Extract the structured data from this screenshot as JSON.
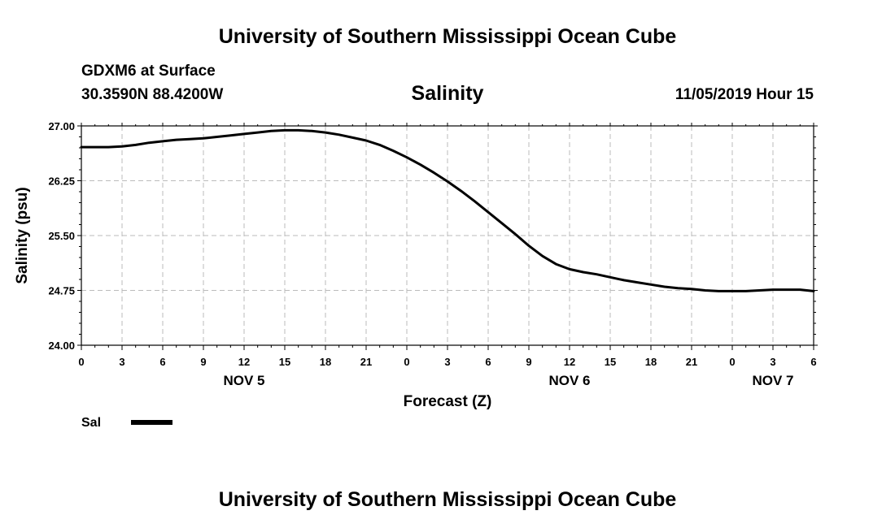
{
  "page": {
    "title_top": "University of Southern Mississippi Ocean Cube",
    "title_bottom": "University of Southern Mississippi Ocean Cube",
    "station": "GDXM6 at Surface",
    "location": "30.3590N 88.4200W",
    "chart_title": "Salinity",
    "timestamp": "11/05/2019 Hour 15"
  },
  "chart_data": {
    "type": "line",
    "title": "Salinity",
    "xlabel": "Forecast (Z)",
    "ylabel": "Salinity (psu)",
    "ylim": [
      24.0,
      27.0
    ],
    "xlim": [
      0,
      54
    ],
    "grid": true,
    "y_ticks": [
      "27.00",
      "26.25",
      "25.50",
      "24.75",
      "24.00"
    ],
    "x_ticks": [
      {
        "hour": 0,
        "label": "0"
      },
      {
        "hour": 3,
        "label": "3"
      },
      {
        "hour": 6,
        "label": "6"
      },
      {
        "hour": 9,
        "label": "9"
      },
      {
        "hour": 12,
        "label": "12"
      },
      {
        "hour": 15,
        "label": "15"
      },
      {
        "hour": 18,
        "label": "18"
      },
      {
        "hour": 21,
        "label": "21"
      },
      {
        "hour": 24,
        "label": "0"
      },
      {
        "hour": 27,
        "label": "3"
      },
      {
        "hour": 30,
        "label": "6"
      },
      {
        "hour": 33,
        "label": "9"
      },
      {
        "hour": 36,
        "label": "12"
      },
      {
        "hour": 39,
        "label": "15"
      },
      {
        "hour": 42,
        "label": "18"
      },
      {
        "hour": 45,
        "label": "21"
      },
      {
        "hour": 48,
        "label": "0"
      },
      {
        "hour": 51,
        "label": "3"
      },
      {
        "hour": 54,
        "label": "6"
      }
    ],
    "day_labels": [
      {
        "hour": 12,
        "label": "NOV 5"
      },
      {
        "hour": 36,
        "label": "NOV 6"
      },
      {
        "hour": 51,
        "label": "NOV 7"
      }
    ],
    "legend": "Sal",
    "legend_position": "bottom-left",
    "series": [
      {
        "name": "Sal",
        "x": [
          0,
          1,
          2,
          3,
          4,
          5,
          6,
          7,
          8,
          9,
          10,
          11,
          12,
          13,
          14,
          15,
          16,
          17,
          18,
          19,
          20,
          21,
          22,
          23,
          24,
          25,
          26,
          27,
          28,
          29,
          30,
          31,
          32,
          33,
          34,
          35,
          36,
          37,
          38,
          39,
          40,
          41,
          42,
          43,
          44,
          45,
          46,
          47,
          48,
          49,
          50,
          51,
          52,
          53,
          54
        ],
        "values": [
          26.71,
          26.71,
          26.71,
          26.72,
          26.74,
          26.77,
          26.79,
          26.81,
          26.82,
          26.83,
          26.85,
          26.87,
          26.89,
          26.91,
          26.93,
          26.94,
          26.94,
          26.93,
          26.91,
          26.88,
          26.84,
          26.8,
          26.74,
          26.66,
          26.57,
          26.47,
          26.36,
          26.24,
          26.11,
          25.97,
          25.82,
          25.67,
          25.52,
          25.36,
          25.22,
          25.11,
          25.04,
          25.0,
          24.97,
          24.93,
          24.89,
          24.86,
          24.83,
          24.8,
          24.78,
          24.77,
          24.75,
          24.74,
          24.74,
          24.74,
          24.75,
          24.76,
          24.76,
          24.76,
          24.74
        ]
      }
    ]
  }
}
